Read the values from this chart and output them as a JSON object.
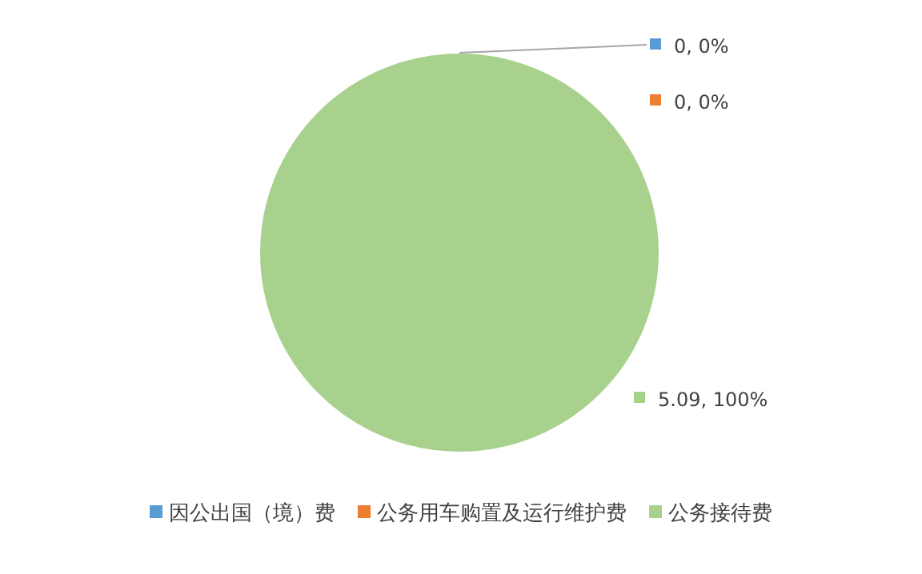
{
  "chart_data": {
    "type": "pie",
    "categories": [
      "因公出国（境）费",
      "公务用车购置及运行维护费",
      "公务接待费"
    ],
    "values": [
      0,
      0,
      5.09
    ],
    "colors": [
      "#5b9bd5",
      "#ed7d31",
      "#a9d18e"
    ],
    "value_labels": [
      "0, 0%",
      "0, 0%",
      "5.09, 100%"
    ],
    "legend": "bottom"
  }
}
